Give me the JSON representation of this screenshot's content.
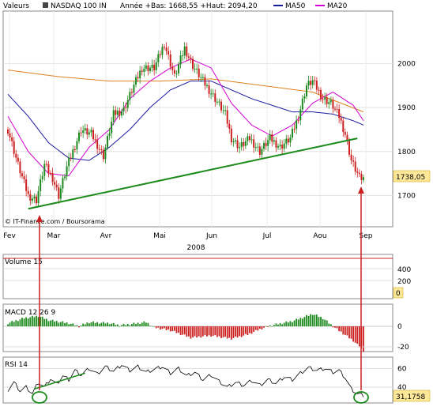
{
  "header": {
    "label": "Valeurs",
    "index": "NASDAQ 100 IN",
    "period": "Année +Bas: 1668,55 +Haut: 2094,20",
    "legend": [
      {
        "label": "MA50",
        "color": "#1a1aa0"
      },
      {
        "label": "MA20",
        "color": "#d400d4"
      }
    ]
  },
  "chart_data": [
    {
      "type": "candlestick",
      "title": "NASDAQ 100 IN",
      "year_label": "2008",
      "credit": "© IT-Finance.com / Boursorama",
      "x_labels": [
        "Fev",
        "Mar",
        "Avr",
        "Mai",
        "Jun",
        "Jul",
        "Aou",
        "Sep"
      ],
      "y_ticks": [
        1700,
        1800,
        1900,
        2000
      ],
      "ylim": [
        1640,
        2110
      ],
      "last_value_label": "1738,05",
      "year_low": 1668.55,
      "year_high": 2094.2,
      "anchors": [
        {
          "day": 0,
          "value": 1850
        },
        {
          "day": 5,
          "value": 1770
        },
        {
          "day": 10,
          "value": 1700
        },
        {
          "day": 14,
          "value": 1690
        },
        {
          "day": 18,
          "value": 1770
        },
        {
          "day": 22,
          "value": 1740
        },
        {
          "day": 25,
          "value": 1700
        },
        {
          "day": 29,
          "value": 1765
        },
        {
          "day": 36,
          "value": 1850
        },
        {
          "day": 41,
          "value": 1840
        },
        {
          "day": 47,
          "value": 1790
        },
        {
          "day": 52,
          "value": 1885
        },
        {
          "day": 57,
          "value": 1895
        },
        {
          "day": 62,
          "value": 1950
        },
        {
          "day": 66,
          "value": 1990
        },
        {
          "day": 72,
          "value": 1990
        },
        {
          "day": 77,
          "value": 2045
        },
        {
          "day": 82,
          "value": 1970
        },
        {
          "day": 87,
          "value": 2035
        },
        {
          "day": 91,
          "value": 1995
        },
        {
          "day": 96,
          "value": 1960
        },
        {
          "day": 102,
          "value": 1920
        },
        {
          "day": 107,
          "value": 1885
        },
        {
          "day": 110,
          "value": 1830
        },
        {
          "day": 114,
          "value": 1810
        },
        {
          "day": 119,
          "value": 1830
        },
        {
          "day": 124,
          "value": 1800
        },
        {
          "day": 129,
          "value": 1830
        },
        {
          "day": 134,
          "value": 1810
        },
        {
          "day": 139,
          "value": 1830
        },
        {
          "day": 143,
          "value": 1880
        },
        {
          "day": 147,
          "value": 1950
        },
        {
          "day": 150,
          "value": 1960
        },
        {
          "day": 155,
          "value": 1920
        },
        {
          "day": 159,
          "value": 1910
        },
        {
          "day": 163,
          "value": 1880
        },
        {
          "day": 166,
          "value": 1840
        },
        {
          "day": 169,
          "value": 1780
        },
        {
          "day": 173,
          "value": 1740
        },
        {
          "day": 175,
          "value": 1738
        }
      ],
      "ma50": [
        {
          "day": 0,
          "value": 1930
        },
        {
          "day": 10,
          "value": 1880
        },
        {
          "day": 20,
          "value": 1820
        },
        {
          "day": 30,
          "value": 1785
        },
        {
          "day": 40,
          "value": 1780
        },
        {
          "day": 50,
          "value": 1810
        },
        {
          "day": 60,
          "value": 1850
        },
        {
          "day": 70,
          "value": 1900
        },
        {
          "day": 80,
          "value": 1940
        },
        {
          "day": 90,
          "value": 1960
        },
        {
          "day": 100,
          "value": 1960
        },
        {
          "day": 110,
          "value": 1940
        },
        {
          "day": 120,
          "value": 1920
        },
        {
          "day": 130,
          "value": 1905
        },
        {
          "day": 140,
          "value": 1890
        },
        {
          "day": 150,
          "value": 1890
        },
        {
          "day": 160,
          "value": 1885
        },
        {
          "day": 170,
          "value": 1870
        },
        {
          "day": 175,
          "value": 1860
        }
      ],
      "ma20": [
        {
          "day": 0,
          "value": 1880
        },
        {
          "day": 10,
          "value": 1800
        },
        {
          "day": 20,
          "value": 1750
        },
        {
          "day": 30,
          "value": 1745
        },
        {
          "day": 40,
          "value": 1810
        },
        {
          "day": 50,
          "value": 1850
        },
        {
          "day": 60,
          "value": 1920
        },
        {
          "day": 70,
          "value": 1960
        },
        {
          "day": 80,
          "value": 1990
        },
        {
          "day": 90,
          "value": 2010
        },
        {
          "day": 100,
          "value": 1990
        },
        {
          "day": 110,
          "value": 1910
        },
        {
          "day": 120,
          "value": 1860
        },
        {
          "day": 130,
          "value": 1835
        },
        {
          "day": 140,
          "value": 1860
        },
        {
          "day": 150,
          "value": 1910
        },
        {
          "day": 160,
          "value": 1935
        },
        {
          "day": 170,
          "value": 1905
        },
        {
          "day": 175,
          "value": 1870
        }
      ],
      "ma_long": [
        {
          "day": 0,
          "value": 1985
        },
        {
          "day": 25,
          "value": 1970
        },
        {
          "day": 50,
          "value": 1960
        },
        {
          "day": 75,
          "value": 1960
        },
        {
          "day": 100,
          "value": 1965
        },
        {
          "day": 125,
          "value": 1950
        },
        {
          "day": 150,
          "value": 1935
        },
        {
          "day": 175,
          "value": 1890
        }
      ],
      "trendline": [
        {
          "day": 10,
          "value": 1670
        },
        {
          "day": 172,
          "value": 1830
        }
      ]
    },
    {
      "type": "bar",
      "title": "Volume 15",
      "y_ticks": [
        0,
        200,
        400
      ],
      "value_label": "0"
    },
    {
      "type": "bar",
      "title": "MACD 12 26 9",
      "y_ticks": [
        -20,
        0
      ],
      "ylim": [
        -25,
        15
      ],
      "histogram": [
        {
          "day": 0,
          "value": 3
        },
        {
          "day": 8,
          "value": 8
        },
        {
          "day": 15,
          "value": 10
        },
        {
          "day": 20,
          "value": 6
        },
        {
          "day": 30,
          "value": 3
        },
        {
          "day": 35,
          "value": 0
        },
        {
          "day": 40,
          "value": 4
        },
        {
          "day": 50,
          "value": 3
        },
        {
          "day": 55,
          "value": 1
        },
        {
          "day": 60,
          "value": 2
        },
        {
          "day": 68,
          "value": 4
        },
        {
          "day": 72,
          "value": -1
        },
        {
          "day": 80,
          "value": -4
        },
        {
          "day": 90,
          "value": -11
        },
        {
          "day": 100,
          "value": -9
        },
        {
          "day": 110,
          "value": -12
        },
        {
          "day": 118,
          "value": -8
        },
        {
          "day": 125,
          "value": -2
        },
        {
          "day": 130,
          "value": 1
        },
        {
          "day": 140,
          "value": 5
        },
        {
          "day": 150,
          "value": 12
        },
        {
          "day": 155,
          "value": 8
        },
        {
          "day": 160,
          "value": 0
        },
        {
          "day": 165,
          "value": -7
        },
        {
          "day": 170,
          "value": -14
        },
        {
          "day": 175,
          "value": -24
        }
      ]
    },
    {
      "type": "line",
      "title": "RSI 14",
      "y_ticks": [
        40,
        60
      ],
      "ylim": [
        20,
        72
      ],
      "value_label": "31,1758",
      "series": [
        {
          "day": 0,
          "value": 37
        },
        {
          "day": 3,
          "value": 45
        },
        {
          "day": 6,
          "value": 36
        },
        {
          "day": 9,
          "value": 40
        },
        {
          "day": 12,
          "value": 33
        },
        {
          "day": 15,
          "value": 45
        },
        {
          "day": 18,
          "value": 40
        },
        {
          "day": 21,
          "value": 49
        },
        {
          "day": 24,
          "value": 43
        },
        {
          "day": 27,
          "value": 52
        },
        {
          "day": 30,
          "value": 48
        },
        {
          "day": 33,
          "value": 58
        },
        {
          "day": 36,
          "value": 53
        },
        {
          "day": 40,
          "value": 60
        },
        {
          "day": 44,
          "value": 54
        },
        {
          "day": 48,
          "value": 62
        },
        {
          "day": 52,
          "value": 57
        },
        {
          "day": 56,
          "value": 64
        },
        {
          "day": 60,
          "value": 58
        },
        {
          "day": 64,
          "value": 62
        },
        {
          "day": 68,
          "value": 56
        },
        {
          "day": 72,
          "value": 59
        },
        {
          "day": 76,
          "value": 62
        },
        {
          "day": 80,
          "value": 55
        },
        {
          "day": 84,
          "value": 60
        },
        {
          "day": 88,
          "value": 52
        },
        {
          "day": 92,
          "value": 56
        },
        {
          "day": 96,
          "value": 48
        },
        {
          "day": 100,
          "value": 53
        },
        {
          "day": 104,
          "value": 46
        },
        {
          "day": 108,
          "value": 40
        },
        {
          "day": 112,
          "value": 45
        },
        {
          "day": 116,
          "value": 42
        },
        {
          "day": 120,
          "value": 47
        },
        {
          "day": 124,
          "value": 42
        },
        {
          "day": 128,
          "value": 48
        },
        {
          "day": 132,
          "value": 44
        },
        {
          "day": 136,
          "value": 51
        },
        {
          "day": 140,
          "value": 48
        },
        {
          "day": 144,
          "value": 55
        },
        {
          "day": 148,
          "value": 61
        },
        {
          "day": 152,
          "value": 58
        },
        {
          "day": 156,
          "value": 60
        },
        {
          "day": 160,
          "value": 56
        },
        {
          "day": 163,
          "value": 58
        },
        {
          "day": 166,
          "value": 50
        },
        {
          "day": 169,
          "value": 38
        },
        {
          "day": 172,
          "value": 33
        },
        {
          "day": 175,
          "value": 31.2
        }
      ],
      "trendline": [
        {
          "day": 13,
          "value": 38
        },
        {
          "day": 38,
          "value": 55
        }
      ]
    }
  ],
  "colors": {
    "up": "#1f8a1f",
    "down": "#cc2020",
    "trend": "#1a8a1a",
    "ma50": "#1a1aa0",
    "ma20": "#d400d4",
    "ma_long": "#e08020",
    "arrow": "#cc2020",
    "value_box": "#fde89a"
  }
}
